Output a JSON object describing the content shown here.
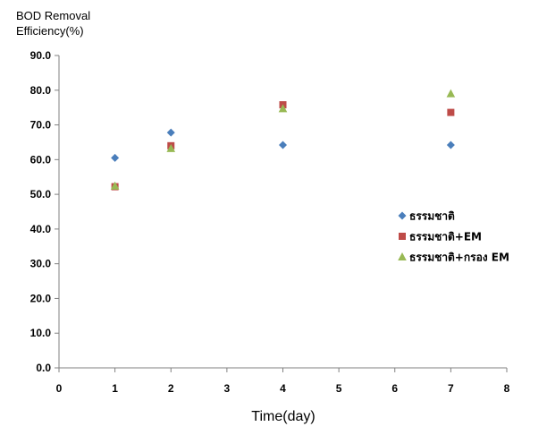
{
  "chart_data": {
    "type": "scatter",
    "title": "",
    "ylabel_lines": [
      "BOD Removal",
      "Efficiency(%)"
    ],
    "xlabel": "Time(day)",
    "xlim": [
      0,
      8
    ],
    "ylim": [
      0,
      90
    ],
    "x_ticks": [
      "0",
      "1",
      "2",
      "3",
      "4",
      "5",
      "6",
      "7",
      "8"
    ],
    "y_ticks": [
      "0.0",
      "10.0",
      "20.0",
      "30.0",
      "40.0",
      "50.0",
      "60.0",
      "70.0",
      "80.0",
      "90.0"
    ],
    "grid": false,
    "legend_position": "right",
    "series": [
      {
        "name": "ธรรมชาติ",
        "marker": "diamond",
        "color": "#4a7ebb",
        "points": [
          {
            "x": 1,
            "y": 60.5
          },
          {
            "x": 2,
            "y": 67.8
          },
          {
            "x": 4,
            "y": 64.2
          },
          {
            "x": 7,
            "y": 64.2
          }
        ]
      },
      {
        "name": "ธรรมชาติ+EM",
        "marker": "square",
        "color": "#be4b48",
        "points": [
          {
            "x": 1,
            "y": 52.2
          },
          {
            "x": 2,
            "y": 64.0
          },
          {
            "x": 4,
            "y": 75.8
          },
          {
            "x": 7,
            "y": 73.6
          }
        ]
      },
      {
        "name": "ธรรมชาติ+กรอง EM",
        "marker": "triangle",
        "color": "#98b954",
        "points": [
          {
            "x": 1,
            "y": 52.4
          },
          {
            "x": 2,
            "y": 63.2
          },
          {
            "x": 4,
            "y": 74.7
          },
          {
            "x": 7,
            "y": 79.0
          }
        ]
      }
    ]
  }
}
